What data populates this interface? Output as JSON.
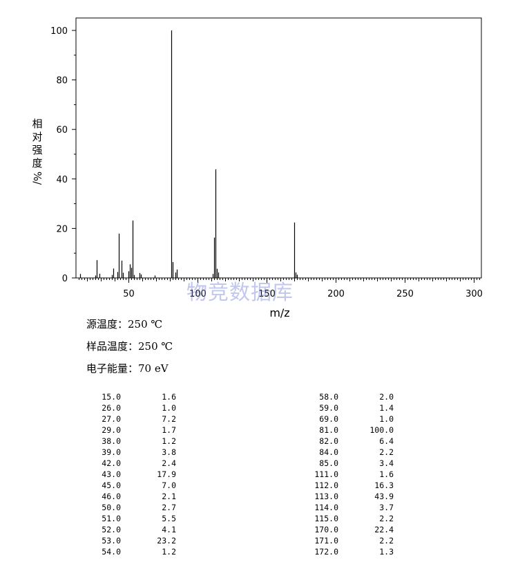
{
  "chart_data": {
    "type": "bar",
    "xlabel": "m/z",
    "ylabel": "相对强度",
    "ylabel_unit": "%/",
    "xlim": [
      10,
      305
    ],
    "ylim": [
      0,
      105
    ],
    "xticks": [
      50,
      100,
      150,
      200,
      250,
      300
    ],
    "yticks": [
      0,
      20,
      40,
      60,
      80,
      100
    ],
    "grid": false,
    "peaks": [
      {
        "mz": 15.0,
        "abundance": 1.6
      },
      {
        "mz": 26.0,
        "abundance": 1.0
      },
      {
        "mz": 27.0,
        "abundance": 7.2
      },
      {
        "mz": 29.0,
        "abundance": 1.7
      },
      {
        "mz": 38.0,
        "abundance": 1.2
      },
      {
        "mz": 39.0,
        "abundance": 3.8
      },
      {
        "mz": 42.0,
        "abundance": 2.4
      },
      {
        "mz": 43.0,
        "abundance": 17.9
      },
      {
        "mz": 45.0,
        "abundance": 7.0
      },
      {
        "mz": 46.0,
        "abundance": 2.1
      },
      {
        "mz": 50.0,
        "abundance": 2.7
      },
      {
        "mz": 51.0,
        "abundance": 5.5
      },
      {
        "mz": 52.0,
        "abundance": 4.1
      },
      {
        "mz": 53.0,
        "abundance": 23.2
      },
      {
        "mz": 54.0,
        "abundance": 1.2
      },
      {
        "mz": 58.0,
        "abundance": 2.0
      },
      {
        "mz": 59.0,
        "abundance": 1.4
      },
      {
        "mz": 69.0,
        "abundance": 1.0
      },
      {
        "mz": 81.0,
        "abundance": 100.0
      },
      {
        "mz": 82.0,
        "abundance": 6.4
      },
      {
        "mz": 84.0,
        "abundance": 2.2
      },
      {
        "mz": 85.0,
        "abundance": 3.4
      },
      {
        "mz": 111.0,
        "abundance": 1.6
      },
      {
        "mz": 112.0,
        "abundance": 16.3
      },
      {
        "mz": 113.0,
        "abundance": 43.9
      },
      {
        "mz": 114.0,
        "abundance": 3.7
      },
      {
        "mz": 115.0,
        "abundance": 2.2
      },
      {
        "mz": 170.0,
        "abundance": 22.4
      },
      {
        "mz": 171.0,
        "abundance": 2.2
      },
      {
        "mz": 172.0,
        "abundance": 1.3
      }
    ]
  },
  "watermark": "物竞数据库",
  "conditions": {
    "source_temp_label": "源温度：",
    "source_temp_value": "250 ℃",
    "sample_temp_label": "样品温度：",
    "sample_temp_value": "250 ℃",
    "electron_energy_label": "电子能量：",
    "electron_energy_value": "70 eV"
  },
  "table_left": [
    [
      "15.0",
      "1.6"
    ],
    [
      "26.0",
      "1.0"
    ],
    [
      "27.0",
      "7.2"
    ],
    [
      "29.0",
      "1.7"
    ],
    [
      "38.0",
      "1.2"
    ],
    [
      "39.0",
      "3.8"
    ],
    [
      "42.0",
      "2.4"
    ],
    [
      "43.0",
      "17.9"
    ],
    [
      "45.0",
      "7.0"
    ],
    [
      "46.0",
      "2.1"
    ],
    [
      "50.0",
      "2.7"
    ],
    [
      "51.0",
      "5.5"
    ],
    [
      "52.0",
      "4.1"
    ],
    [
      "53.0",
      "23.2"
    ],
    [
      "54.0",
      "1.2"
    ]
  ],
  "table_right": [
    [
      "58.0",
      "2.0"
    ],
    [
      "59.0",
      "1.4"
    ],
    [
      "69.0",
      "1.0"
    ],
    [
      "81.0",
      "100.0"
    ],
    [
      "82.0",
      "6.4"
    ],
    [
      "84.0",
      "2.2"
    ],
    [
      "85.0",
      "3.4"
    ],
    [
      "111.0",
      "1.6"
    ],
    [
      "112.0",
      "16.3"
    ],
    [
      "113.0",
      "43.9"
    ],
    [
      "114.0",
      "3.7"
    ],
    [
      "115.0",
      "2.2"
    ],
    [
      "170.0",
      "22.4"
    ],
    [
      "171.0",
      "2.2"
    ],
    [
      "172.0",
      "1.3"
    ]
  ]
}
